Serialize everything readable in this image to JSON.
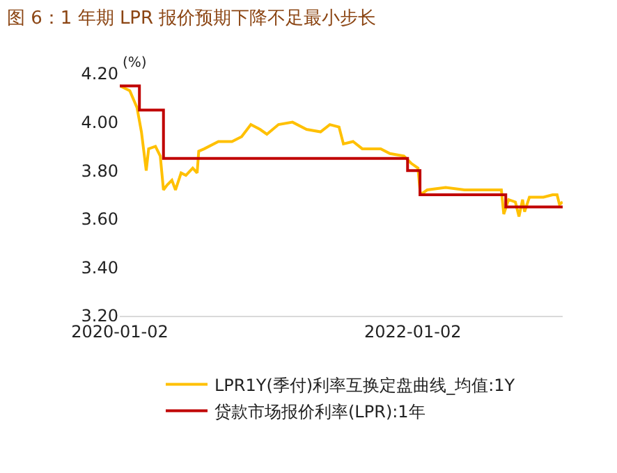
{
  "chart_data": {
    "type": "line",
    "title": "图 6：1 年期 LPR 报价预期下降不足最小步长",
    "ylabel": "(%)",
    "xlim": [
      "2020-01-02",
      "2023-01-11"
    ],
    "xticks": [
      "2020-01-02",
      "2022-01-02"
    ],
    "ylim": [
      3.2,
      4.2
    ],
    "yticks": [
      {
        "value": 3.2,
        "label": "3.20"
      },
      {
        "value": 3.4,
        "label": "3.40"
      },
      {
        "value": 3.6,
        "label": "3.60"
      },
      {
        "value": 3.8,
        "label": "3.80"
      },
      {
        "value": 4.0,
        "label": "4.00"
      },
      {
        "value": 4.2,
        "label": "4.20"
      }
    ],
    "grid": false,
    "legend": "bottom",
    "series": [
      {
        "name": "LPR1Y(季付)利率互换定盘曲线_均值:1Y",
        "color": "#ffc000",
        "x": [
          "2020-01-02",
          "2020-01-27",
          "2020-02-14",
          "2020-02-25",
          "2020-03-08",
          "2020-03-14",
          "2020-03-31",
          "2020-04-12",
          "2020-04-20",
          "2020-04-29",
          "2020-05-11",
          "2020-05-20",
          "2020-06-03",
          "2020-06-15",
          "2020-07-02",
          "2020-07-13",
          "2020-07-17",
          "2020-07-31",
          "2020-09-04",
          "2020-10-08",
          "2020-11-01",
          "2020-11-24",
          "2020-12-17",
          "2021-01-03",
          "2021-02-01",
          "2021-03-08",
          "2021-04-12",
          "2021-05-17",
          "2021-06-09",
          "2021-07-02",
          "2021-07-13",
          "2021-08-06",
          "2021-08-29",
          "2021-10-14",
          "2021-11-06",
          "2021-12-11",
          "2021-12-29",
          "2022-01-15",
          "2022-01-21",
          "2022-02-07",
          "2022-03-25",
          "2022-05-11",
          "2022-06-26",
          "2022-08-11",
          "2022-08-17",
          "2022-08-29",
          "2022-09-15",
          "2022-09-24",
          "2022-10-03",
          "2022-10-08",
          "2022-10-20",
          "2022-11-24",
          "2022-12-17",
          "2022-12-28",
          "2023-01-03",
          "2023-01-11"
        ],
        "values": [
          4.15,
          4.13,
          4.06,
          3.96,
          3.8,
          3.89,
          3.9,
          3.86,
          3.72,
          3.74,
          3.76,
          3.72,
          3.79,
          3.78,
          3.81,
          3.79,
          3.88,
          3.89,
          3.92,
          3.92,
          3.94,
          3.99,
          3.97,
          3.95,
          3.99,
          4.0,
          3.97,
          3.96,
          3.99,
          3.98,
          3.91,
          3.92,
          3.89,
          3.89,
          3.87,
          3.86,
          3.83,
          3.81,
          3.7,
          3.72,
          3.73,
          3.72,
          3.72,
          3.72,
          3.62,
          3.68,
          3.67,
          3.61,
          3.68,
          3.63,
          3.69,
          3.69,
          3.7,
          3.7,
          3.66,
          3.67
        ]
      },
      {
        "name": "贷款市场报价利率(LPR):1年",
        "color": "#c00000",
        "type": "step",
        "x": [
          "2020-01-02",
          "2020-02-20",
          "2020-04-20",
          "2021-12-20",
          "2022-01-20",
          "2022-08-22",
          "2023-01-11"
        ],
        "values": [
          4.15,
          4.05,
          3.85,
          3.8,
          3.7,
          3.65,
          3.65
        ]
      }
    ]
  }
}
